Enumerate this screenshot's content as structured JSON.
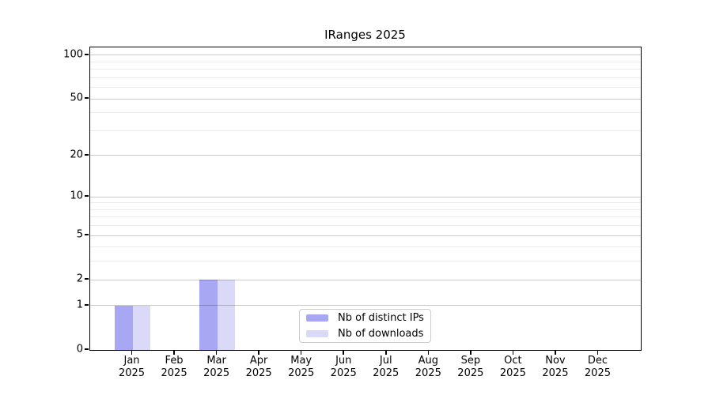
{
  "chart_data": {
    "type": "bar",
    "title": "IRanges 2025",
    "x_tick_labels": [
      [
        "Jan",
        "2025"
      ],
      [
        "Feb",
        "2025"
      ],
      [
        "Mar",
        "2025"
      ],
      [
        "Apr",
        "2025"
      ],
      [
        "May",
        "2025"
      ],
      [
        "Jun",
        "2025"
      ],
      [
        "Jul",
        "2025"
      ],
      [
        "Aug",
        "2025"
      ],
      [
        "Sep",
        "2025"
      ],
      [
        "Oct",
        "2025"
      ],
      [
        "Nov",
        "2025"
      ],
      [
        "Dec",
        "2025"
      ]
    ],
    "series": [
      {
        "name": "Nb of distinct IPs",
        "color": "#a7a7f3",
        "values": [
          1,
          0,
          2,
          0,
          0,
          0,
          0,
          0,
          0,
          0,
          0,
          0
        ]
      },
      {
        "name": "Nb of downloads",
        "color": "#dadaf8",
        "values": [
          1,
          0,
          2,
          0,
          0,
          0,
          0,
          0,
          0,
          0,
          0,
          0
        ]
      }
    ],
    "y_axis": {
      "scale": "log1p",
      "major_ticks": [
        0,
        1,
        2,
        5,
        10,
        20,
        50,
        100
      ],
      "minor_gridlines": [
        3,
        4,
        6,
        7,
        8,
        9,
        30,
        40,
        60,
        70,
        80,
        90
      ],
      "max": 113
    },
    "legend": {
      "position": "lower center",
      "entries": [
        "Nb of distinct IPs",
        "Nb of downloads"
      ]
    },
    "grid": "horizontal-only",
    "colors": {
      "major_grid": "rgba(0,0,0,0.21)",
      "minor_grid": "rgba(0,0,0,0.08)",
      "spine": "#000000",
      "text": "#000000",
      "background": "#ffffff"
    }
  }
}
